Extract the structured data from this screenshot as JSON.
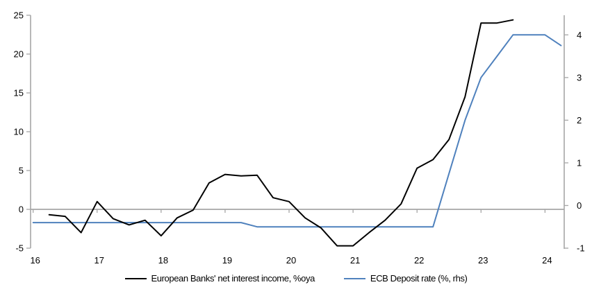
{
  "chart_data": {
    "type": "line",
    "title": "",
    "background": "#ffffff",
    "axis_color": "#a6a6a6",
    "text_color": "#000000",
    "x_axis": {
      "xlim": [
        15.96,
        24.3
      ],
      "tick_positions": [
        16,
        17,
        18,
        19,
        20,
        21,
        22,
        23,
        24
      ],
      "tick_labels": [
        "16",
        "17",
        "18",
        "19",
        "20",
        "21",
        "22",
        "23",
        "24"
      ],
      "labels_position": "low"
    },
    "left_axis": {
      "ylim": [
        -5,
        25
      ],
      "tick_values": [
        25,
        20,
        15,
        10,
        5,
        0,
        -5
      ],
      "tick_labels": [
        "25",
        "20",
        "15",
        "10",
        "5",
        "0",
        "-5"
      ]
    },
    "right_axis": {
      "ylim": [
        -1,
        4.46
      ],
      "tick_values": [
        4,
        3,
        2,
        1,
        0,
        -1
      ],
      "tick_labels": [
        "4",
        "3",
        "2",
        "1",
        "0",
        "-1"
      ]
    },
    "zero_gridline": {
      "value": 0,
      "axis": "left"
    },
    "legend_position": "bottom-center",
    "series": [
      {
        "name": "European Banks' net interest income, %oya",
        "color": "#000000",
        "stroke_width": 2,
        "axis": "left",
        "x": [
          16.25,
          16.5,
          16.75,
          17.0,
          17.25,
          17.5,
          17.75,
          18.0,
          18.25,
          18.5,
          18.75,
          19.0,
          19.25,
          19.5,
          19.75,
          20.0,
          20.25,
          20.5,
          20.75,
          21.0,
          21.25,
          21.5,
          21.75,
          22.0,
          22.25,
          22.5,
          22.75,
          23.0,
          23.25,
          23.5
        ],
        "values": [
          -0.7,
          -0.9,
          -3.0,
          1.0,
          -1.2,
          -2.0,
          -1.4,
          -3.4,
          -1.1,
          -0.1,
          3.4,
          4.5,
          4.3,
          4.4,
          1.5,
          1.0,
          -1.1,
          -2.4,
          -4.7,
          -4.7,
          -3.0,
          -1.4,
          0.7,
          5.3,
          6.4,
          9.0,
          14.5,
          24.0,
          24.0,
          24.4
        ]
      },
      {
        "name": "ECB Deposit rate (%, rhs)",
        "color": "#4f81bd",
        "stroke_width": 2,
        "axis": "right",
        "x": [
          16.0,
          16.25,
          16.5,
          16.75,
          17.0,
          17.25,
          17.5,
          17.75,
          18.0,
          18.25,
          18.5,
          18.75,
          19.0,
          19.25,
          19.5,
          19.75,
          20.0,
          20.25,
          20.5,
          20.75,
          21.0,
          21.25,
          21.5,
          21.75,
          22.0,
          22.25,
          22.5,
          22.75,
          23.0,
          23.25,
          23.5,
          23.75,
          24.0,
          24.25
        ],
        "values": [
          -0.4,
          -0.4,
          -0.4,
          -0.4,
          -0.4,
          -0.4,
          -0.4,
          -0.4,
          -0.4,
          -0.4,
          -0.4,
          -0.4,
          -0.4,
          -0.4,
          -0.5,
          -0.5,
          -0.5,
          -0.5,
          -0.5,
          -0.5,
          -0.5,
          -0.5,
          -0.5,
          -0.5,
          -0.5,
          -0.5,
          0.75,
          2.0,
          3.0,
          3.5,
          4.0,
          4.0,
          4.0,
          3.75
        ]
      }
    ]
  }
}
